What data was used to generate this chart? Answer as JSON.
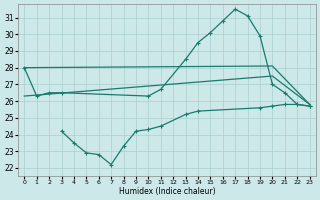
{
  "bg_color": "#cce8e8",
  "grid_color": "#aacfcf",
  "line_color": "#1a7a6e",
  "xlabel": "Humidex (Indice chaleur)",
  "ylim": [
    21.5,
    31.8
  ],
  "xlim": [
    -0.5,
    23.5
  ],
  "yticks": [
    22,
    23,
    24,
    25,
    26,
    27,
    28,
    29,
    30,
    31
  ],
  "xticks": [
    0,
    1,
    2,
    3,
    4,
    5,
    6,
    7,
    8,
    9,
    10,
    11,
    12,
    13,
    14,
    15,
    16,
    17,
    18,
    19,
    20,
    21,
    22,
    23
  ],
  "line1_x": [
    0,
    1,
    2,
    3,
    10,
    11,
    13,
    14,
    15,
    16,
    17,
    18,
    19,
    20,
    21,
    22,
    23
  ],
  "line1_y": [
    28.0,
    26.3,
    26.5,
    26.5,
    26.3,
    26.7,
    28.5,
    29.5,
    30.1,
    30.8,
    31.5,
    31.1,
    29.9,
    27.0,
    26.5,
    25.8,
    25.7
  ],
  "line2_x": [
    0,
    20,
    23
  ],
  "line2_y": [
    28.0,
    28.1,
    25.8
  ],
  "line3_x": [
    0,
    20,
    23
  ],
  "line3_y": [
    26.3,
    27.5,
    25.8
  ],
  "line4_x": [
    3,
    4,
    5,
    6,
    7,
    8,
    9,
    10,
    11,
    13,
    14,
    19,
    20,
    21,
    22,
    23
  ],
  "line4_y": [
    24.2,
    23.5,
    22.9,
    22.8,
    22.2,
    23.3,
    24.2,
    24.3,
    24.5,
    25.2,
    25.4,
    25.6,
    25.7,
    25.8,
    25.8,
    25.7
  ]
}
